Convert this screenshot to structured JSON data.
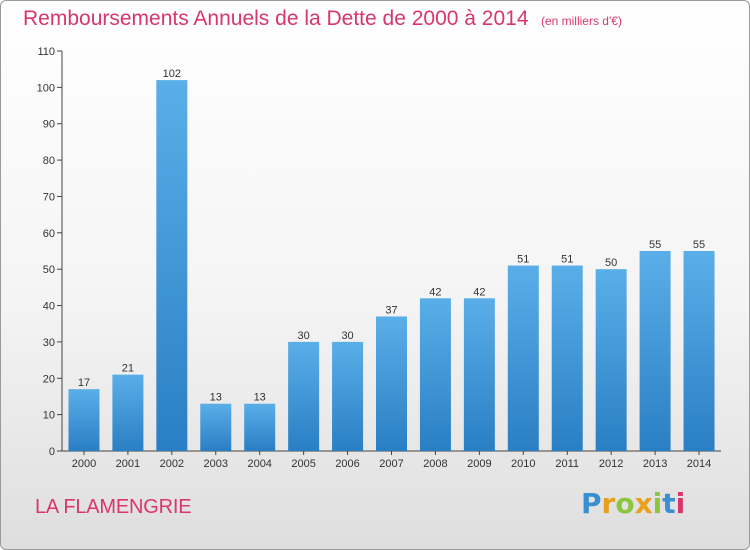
{
  "chart_data": {
    "type": "bar",
    "title": "Remboursements Annuels de la Dette de 2000 à 2014",
    "unit": "(en milliers d'€)",
    "categories": [
      "2000",
      "2001",
      "2002",
      "2003",
      "2004",
      "2005",
      "2006",
      "2007",
      "2008",
      "2009",
      "2010",
      "2011",
      "2012",
      "2013",
      "2014"
    ],
    "values": [
      17,
      21,
      102,
      13,
      13,
      30,
      30,
      37,
      42,
      42,
      51,
      51,
      50,
      55,
      55
    ],
    "ylim": [
      0,
      110
    ],
    "yticks": [
      0,
      10,
      20,
      30,
      40,
      50,
      60,
      70,
      80,
      90,
      100,
      110
    ],
    "grid": false,
    "xlabel": "",
    "ylabel": "",
    "bar_color_light": "#5aaee8",
    "bar_color_dark": "#2a7fc4"
  },
  "footer": {
    "place_name": "LA FLAMENGRIE",
    "brand": "Proxiti"
  },
  "colors": {
    "accent": "#d9366b"
  }
}
